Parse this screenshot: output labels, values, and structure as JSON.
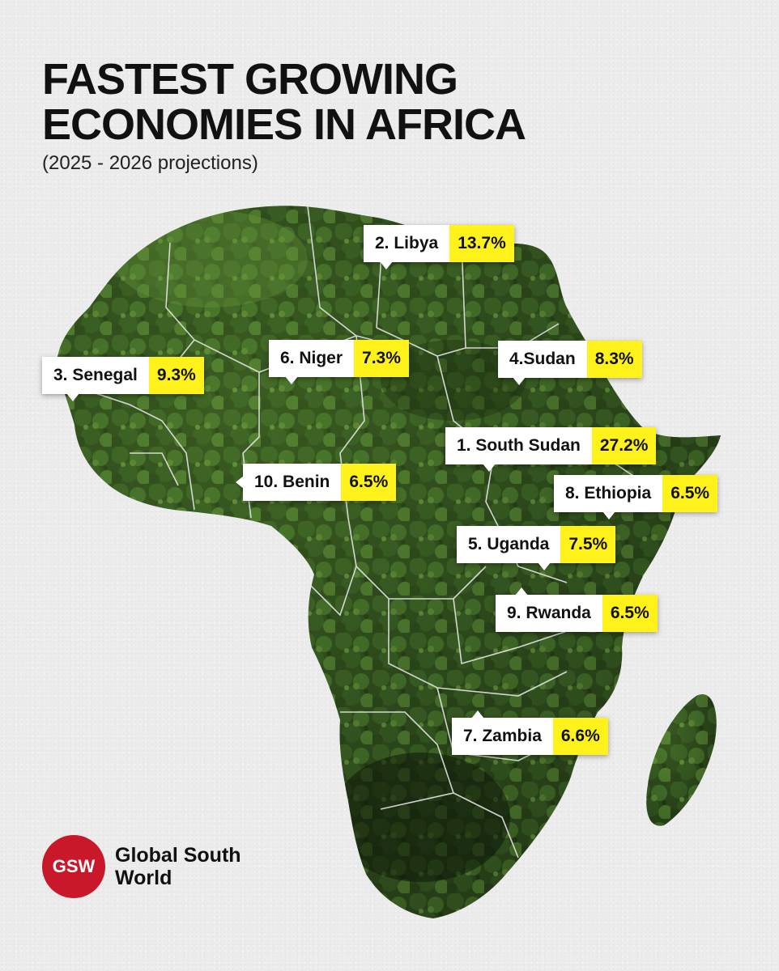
{
  "title": {
    "line1": "FASTEST GROWING",
    "line2": "ECONOMIES IN AFRICA",
    "subtitle": "(2025 - 2026 projections)"
  },
  "map": {
    "region": "Africa",
    "fill_colors": [
      "#1f3315",
      "#2f4d1e",
      "#3f6a28",
      "#5f8c36"
    ],
    "border_color": "#e6e6e6"
  },
  "labels": [
    {
      "id": "libya",
      "name": "2. Libya",
      "value": "13.7%"
    },
    {
      "id": "senegal",
      "name": "3. Senegal",
      "value": "9.3%"
    },
    {
      "id": "niger",
      "name": "6. Niger",
      "value": "7.3%"
    },
    {
      "id": "sudan",
      "name": "4.Sudan",
      "value": "8.3%"
    },
    {
      "id": "south-sudan",
      "name": "1. South Sudan",
      "value": "27.2%"
    },
    {
      "id": "benin",
      "name": "10. Benin",
      "value": "6.5%"
    },
    {
      "id": "ethiopia",
      "name": "8. Ethiopia",
      "value": "6.5%"
    },
    {
      "id": "uganda",
      "name": "5. Uganda",
      "value": "7.5%"
    },
    {
      "id": "rwanda",
      "name": "9. Rwanda",
      "value": "6.5%"
    },
    {
      "id": "zambia",
      "name": "7. Zambia",
      "value": "6.6%"
    }
  ],
  "colors": {
    "value_bg": "#fff21a",
    "name_bg": "#ffffff",
    "brand_red": "#c8182a"
  },
  "brand": {
    "logo_text": "GSW",
    "name_line1": "Global South",
    "name_line2": "World"
  }
}
